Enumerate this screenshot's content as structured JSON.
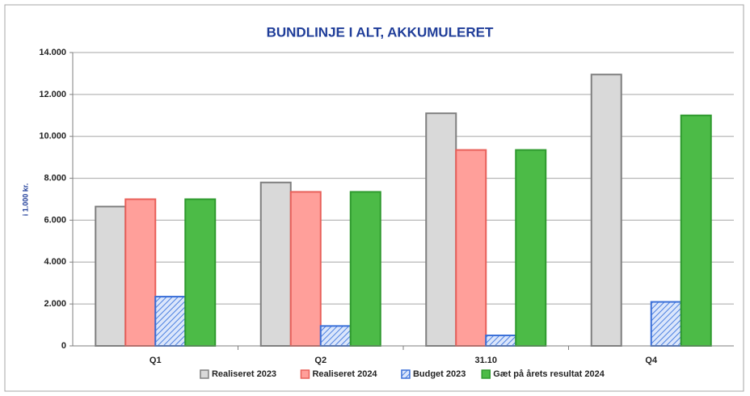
{
  "chart_data": {
    "type": "bar",
    "title": "BUNDLINJE I ALT, AKKUMULERET",
    "ylabel": "i 1.000 kr.",
    "categories": [
      "Q1",
      "Q2",
      "31.10",
      "Q4"
    ],
    "series": [
      {
        "name": "Realiseret 2023",
        "color": "#d9d9d9",
        "edgecolor": "#7f7f7f",
        "values": [
          6650,
          7800,
          11100,
          12950
        ]
      },
      {
        "name": "Realiseret 2024",
        "color": "#ff9f9a",
        "edgecolor": "#e8605a",
        "values": [
          7000,
          7350,
          9350,
          null
        ]
      },
      {
        "name": "Budget 2023",
        "color": "#dbe6fb",
        "edgecolor": "#3a6fd8",
        "hatch": true,
        "values": [
          2350,
          950,
          500,
          2100
        ]
      },
      {
        "name": "Gæt på årets resultat 2024",
        "color": "#4cbb47",
        "edgecolor": "#2e9a2e",
        "values": [
          7000,
          7350,
          9350,
          11000
        ]
      }
    ],
    "ylim": [
      0,
      14000
    ],
    "yticks": [
      0,
      {
        "value": 2000,
        "label": "2.000"
      },
      {
        "value": 4000,
        "label": "4.000"
      },
      {
        "value": 6000,
        "label": "6.000"
      },
      {
        "value": 8000,
        "label": "8.000"
      },
      {
        "value": 10000,
        "label": "10.000"
      },
      {
        "value": 12000,
        "label": "12.000"
      },
      {
        "value": 14000,
        "label": "14.000"
      }
    ],
    "grid": true,
    "legend": "bottom"
  }
}
